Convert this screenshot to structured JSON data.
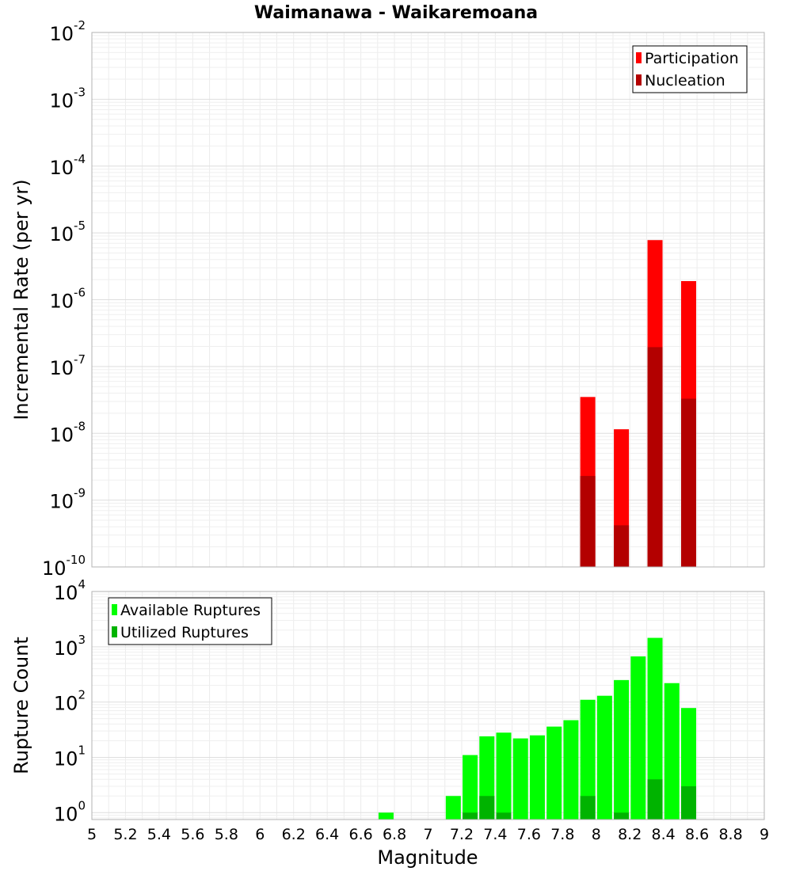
{
  "chart_data": [
    {
      "type": "bar",
      "title": "Waimanawa - Waikaremoana",
      "ylabel": "Incremental Rate (per yr)",
      "xlabel": "",
      "yscale": "log",
      "ylim": [
        1e-10,
        0.01
      ],
      "xlim": [
        5,
        9
      ],
      "grid": true,
      "legend_position": "top-right",
      "x": [
        7.95,
        8.15,
        8.35,
        8.55
      ],
      "series": [
        {
          "name": "Participation",
          "color": "#ff0000",
          "values": [
            3.5e-08,
            1.15e-08,
            7.8e-06,
            1.9e-06
          ]
        },
        {
          "name": "Nucleation",
          "color": "#b30000",
          "values": [
            2.3e-09,
            4.2e-10,
            1.95e-07,
            3.3e-08
          ]
        }
      ],
      "y_ticks": [
        {
          "base": "10",
          "exp": "-10"
        },
        {
          "base": "10",
          "exp": "-9"
        },
        {
          "base": "10",
          "exp": "-8"
        },
        {
          "base": "10",
          "exp": "-7"
        },
        {
          "base": "10",
          "exp": "-6"
        },
        {
          "base": "10",
          "exp": "-5"
        },
        {
          "base": "10",
          "exp": "-4"
        },
        {
          "base": "10",
          "exp": "-3"
        },
        {
          "base": "10",
          "exp": "-2"
        }
      ]
    },
    {
      "type": "bar",
      "title": "",
      "ylabel": "Rupture Count",
      "xlabel": "Magnitude",
      "yscale": "log",
      "ylim": [
        0.75,
        10000
      ],
      "xlim": [
        5,
        9
      ],
      "grid": true,
      "legend_position": "top-left",
      "x": [
        6.75,
        7.15,
        7.25,
        7.35,
        7.45,
        7.55,
        7.65,
        7.75,
        7.85,
        7.95,
        8.05,
        8.15,
        8.25,
        8.35,
        8.45,
        8.55
      ],
      "series": [
        {
          "name": "Available Ruptures",
          "color": "#00ff00",
          "values": [
            1,
            2,
            11,
            24,
            28,
            22,
            25,
            36,
            47,
            110,
            130,
            250,
            670,
            1450,
            220,
            78
          ]
        },
        {
          "name": "Utilized Ruptures",
          "color": "#00b300",
          "values": [
            null,
            null,
            1,
            2,
            1,
            null,
            null,
            null,
            null,
            2,
            null,
            1,
            null,
            4,
            null,
            3
          ]
        }
      ],
      "y_ticks": [
        {
          "base": "10",
          "exp": "0"
        },
        {
          "base": "10",
          "exp": "1"
        },
        {
          "base": "10",
          "exp": "2"
        },
        {
          "base": "10",
          "exp": "3"
        },
        {
          "base": "10",
          "exp": "4"
        }
      ],
      "x_ticks": [
        "5",
        "5.2",
        "5.4",
        "5.6",
        "5.8",
        "6",
        "6.2",
        "6.4",
        "6.6",
        "6.8",
        "7",
        "7.2",
        "7.4",
        "7.6",
        "7.8",
        "8",
        "8.2",
        "8.4",
        "8.6",
        "8.8",
        "9"
      ]
    }
  ]
}
